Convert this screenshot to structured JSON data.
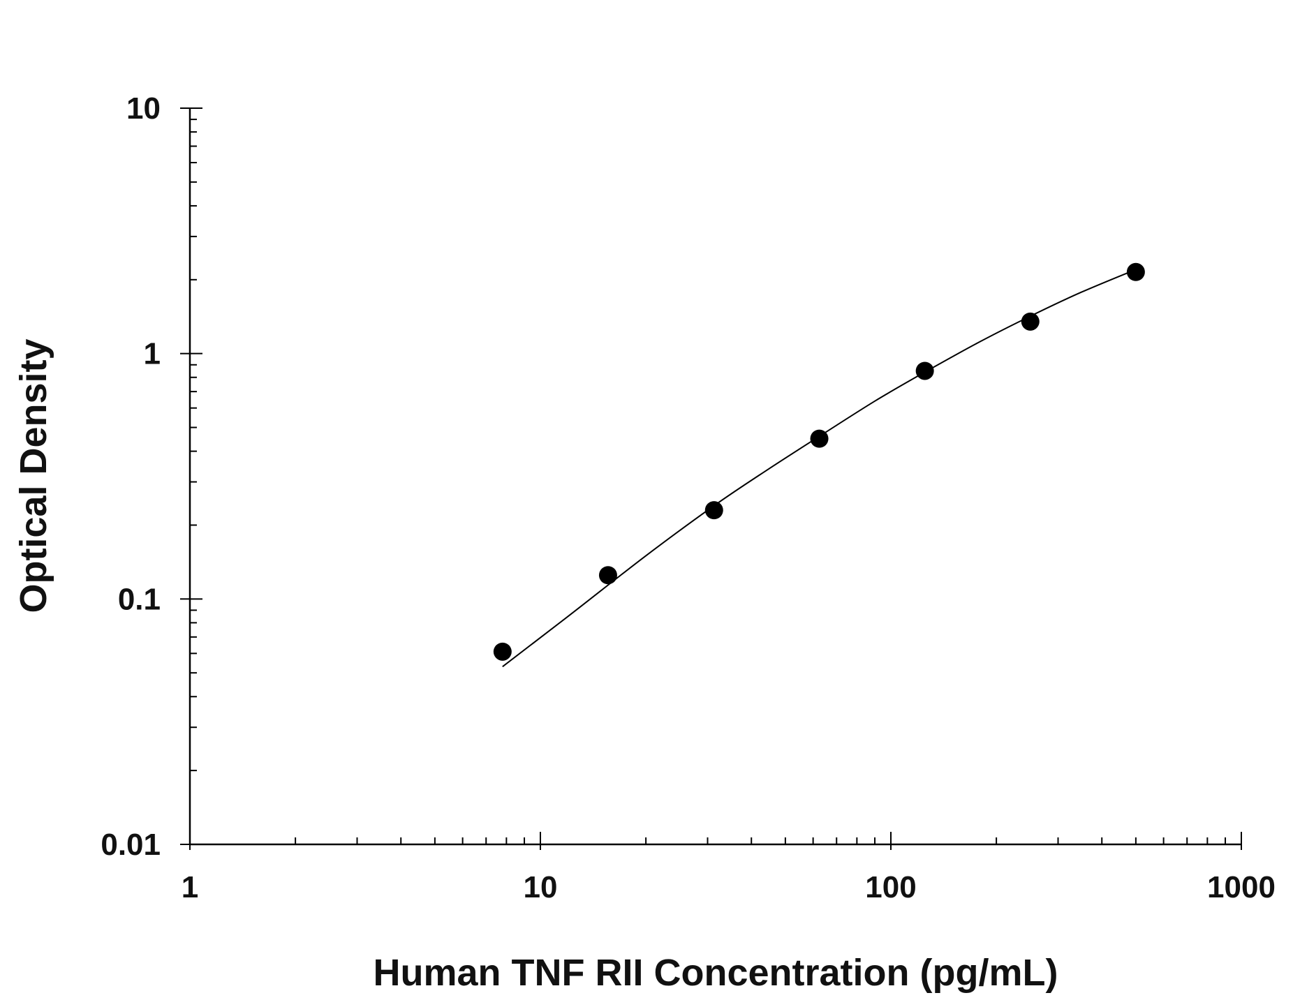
{
  "chart_data": {
    "type": "scatter",
    "xlabel": "Human TNF RII Concentration (pg/mL)",
    "ylabel": "Optical Density",
    "x_scale": "log",
    "y_scale": "log",
    "xlim": [
      1,
      1000
    ],
    "ylim": [
      0.01,
      10
    ],
    "x_ticks": [
      1,
      10,
      100,
      1000
    ],
    "x_tick_labels": [
      "1",
      "10",
      "100",
      "1000"
    ],
    "y_ticks": [
      0.01,
      0.1,
      1,
      10
    ],
    "y_tick_labels": [
      "0.01",
      "0.1",
      "1",
      "10"
    ],
    "grid": false,
    "legend": "none",
    "series": [
      {
        "marker": "circle",
        "color": "#000000",
        "x": [
          7.8,
          15.6,
          31.3,
          62.5,
          125,
          250,
          500
        ],
        "y": [
          0.061,
          0.125,
          0.23,
          0.45,
          0.85,
          1.35,
          2.15
        ]
      }
    ],
    "fit_curve": {
      "color": "#000000",
      "x": [
        7.8,
        12,
        20,
        31.3,
        45,
        62.5,
        90,
        125,
        180,
        250,
        350,
        500
      ],
      "y": [
        0.053,
        0.085,
        0.15,
        0.24,
        0.34,
        0.46,
        0.64,
        0.84,
        1.12,
        1.42,
        1.78,
        2.2
      ]
    }
  }
}
